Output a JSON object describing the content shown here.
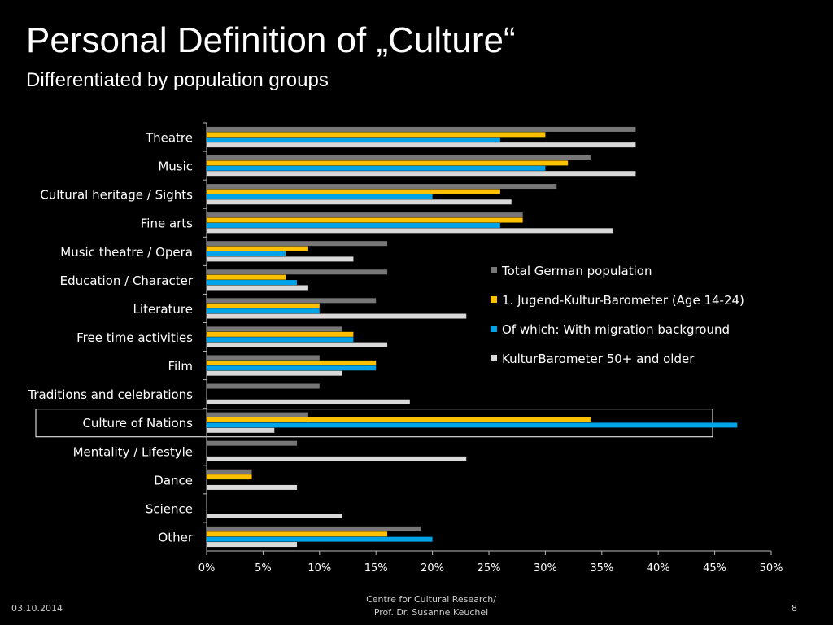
{
  "slide": {
    "title": "Personal Definition of „Culture“",
    "subtitle": "Differentiated by population groups"
  },
  "footer": {
    "date": "03.10.2014",
    "center_line1": "Centre for Cultural Research/",
    "center_line2": "Prof. Dr. Susanne Keuchel",
    "page": "8"
  },
  "chart_data": {
    "type": "bar",
    "orientation": "horizontal",
    "categories": [
      "Theatre",
      "Music",
      "Cultural heritage / Sights",
      "Fine arts",
      "Music theatre / Opera",
      "Education / Character",
      "Literature",
      "Free time activities",
      "Film",
      "Traditions and celebrations",
      "Culture of Nations",
      "Mentality / Lifestyle",
      "Dance",
      "Science",
      "Other"
    ],
    "series": [
      {
        "name": "Total German population",
        "color": "#777777",
        "values": [
          38,
          34,
          31,
          28,
          16,
          16,
          15,
          12,
          10,
          10,
          9,
          8,
          4,
          null,
          19
        ]
      },
      {
        "name": "1. Jugend-Kultur-Barometer (Age 14-24)",
        "color": "#ffc000",
        "values": [
          30,
          32,
          26,
          28,
          9,
          7,
          10,
          13,
          15,
          null,
          34,
          null,
          4,
          null,
          16
        ]
      },
      {
        "name": "Of which: With migration background",
        "color": "#00a2e8",
        "values": [
          26,
          30,
          20,
          26,
          7,
          8,
          10,
          13,
          15,
          null,
          47,
          null,
          null,
          null,
          20
        ]
      },
      {
        "name": "KulturBarometer 50+ and older",
        "color": "#d9d9d9",
        "values": [
          38,
          38,
          27,
          36,
          13,
          9,
          23,
          16,
          12,
          18,
          6,
          23,
          8,
          12,
          8
        ]
      }
    ],
    "x_ticks": [
      "0%",
      "5%",
      "10%",
      "15%",
      "20%",
      "25%",
      "30%",
      "35%",
      "40%",
      "45%",
      "50%"
    ],
    "xlim": [
      0,
      50
    ],
    "unit": "%",
    "highlighted_category": "Culture of Nations",
    "grid": false,
    "legend_position": "right-middle"
  }
}
